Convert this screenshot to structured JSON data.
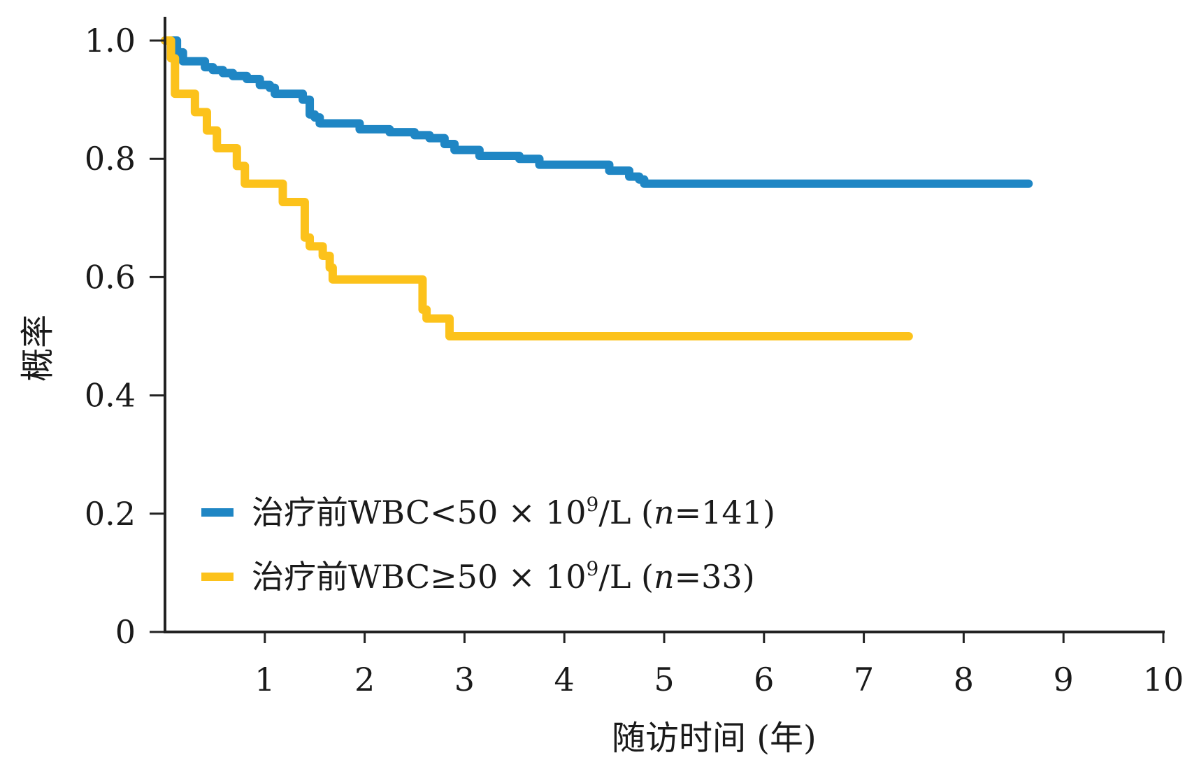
{
  "chart_data": {
    "type": "line",
    "step": true,
    "title": "",
    "xlabel": "随访时间 (年)",
    "ylabel": "概率",
    "xlim": [
      0,
      10
    ],
    "ylim": [
      0,
      1.0
    ],
    "x_ticks": [
      1,
      2,
      3,
      4,
      5,
      6,
      7,
      8,
      9,
      10
    ],
    "y_ticks": [
      {
        "value": 0,
        "label": "0"
      },
      {
        "value": 0.2,
        "label": "0.2"
      },
      {
        "value": 0.4,
        "label": "0.4"
      },
      {
        "value": 0.6,
        "label": "0.6"
      },
      {
        "value": 0.8,
        "label": "0.8"
      },
      {
        "value": 1.0,
        "label": "1.0"
      }
    ],
    "grid": false,
    "legend_position": "bottom-left",
    "series": [
      {
        "name": "治疗前WBC<50 × 10⁹/L (n=141)",
        "legend": {
          "prefix": "治疗前WBC<50 × 10",
          "sup": "9",
          "mid": "/L (",
          "italic": "n",
          "suffix": "=141)"
        },
        "color": "#1f86c4",
        "x": [
          0,
          0.12,
          0.18,
          0.4,
          0.48,
          0.58,
          0.68,
          0.82,
          0.95,
          1.05,
          1.1,
          1.38,
          1.45,
          1.5,
          1.55,
          1.95,
          2.25,
          2.5,
          2.65,
          2.8,
          2.9,
          3.15,
          3.55,
          3.75,
          4.45,
          4.65,
          4.75,
          4.8,
          8.65
        ],
        "y": [
          1.0,
          0.98,
          0.965,
          0.955,
          0.95,
          0.945,
          0.94,
          0.935,
          0.925,
          0.92,
          0.91,
          0.9,
          0.875,
          0.87,
          0.86,
          0.85,
          0.845,
          0.84,
          0.835,
          0.825,
          0.815,
          0.805,
          0.8,
          0.79,
          0.78,
          0.77,
          0.765,
          0.758,
          0.758
        ]
      },
      {
        "name": "治疗前WBC≥50 × 10⁹/L (n=33)",
        "legend": {
          "prefix": "治疗前WBC≥50 × 10",
          "sup": "9",
          "mid": "/L (",
          "italic": "n",
          "suffix": "=33)"
        },
        "color": "#fcc21b",
        "x": [
          0,
          0.06,
          0.1,
          0.3,
          0.42,
          0.52,
          0.72,
          0.8,
          1.18,
          1.4,
          1.45,
          1.58,
          1.65,
          1.68,
          2.58,
          2.62,
          2.85,
          7.45
        ],
        "y": [
          1.0,
          0.97,
          0.91,
          0.879,
          0.848,
          0.818,
          0.788,
          0.758,
          0.727,
          0.667,
          0.652,
          0.636,
          0.616,
          0.596,
          0.545,
          0.53,
          0.5,
          0.5
        ]
      }
    ]
  }
}
